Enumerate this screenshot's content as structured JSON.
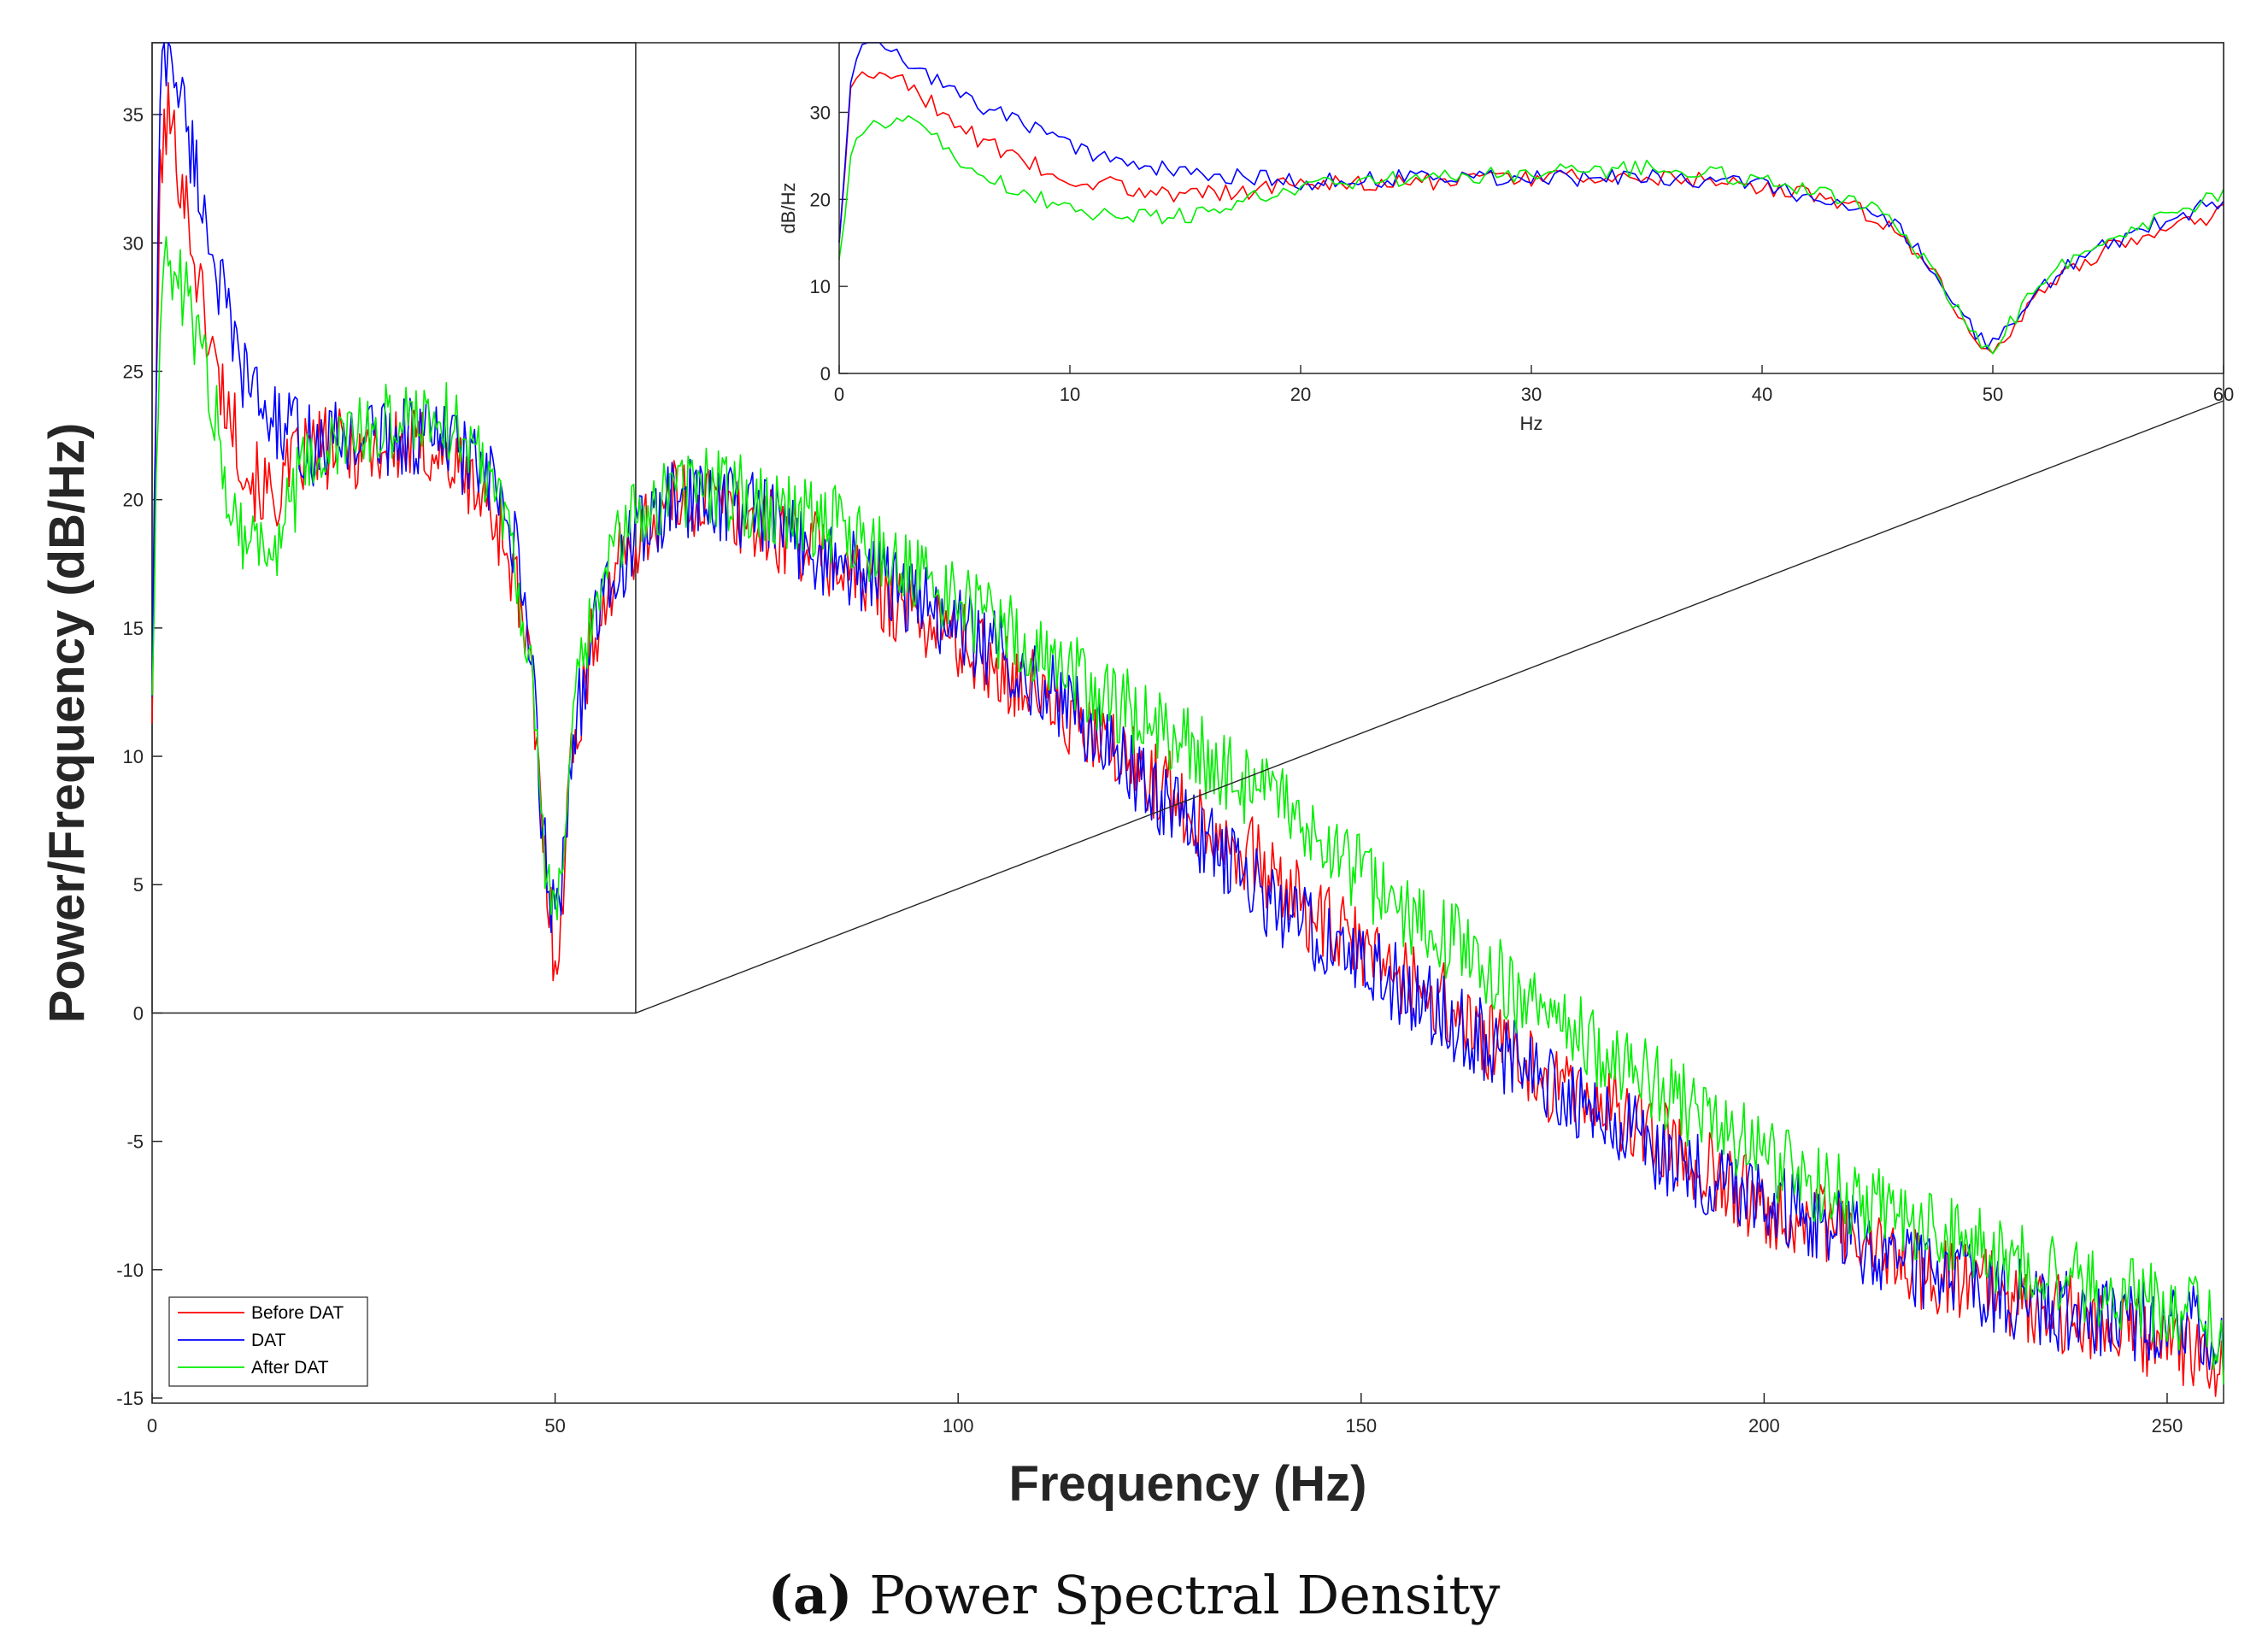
{
  "figure": {
    "caption_tag": "(a)",
    "caption_text": "Power Spectral Density"
  },
  "chart_data": [
    {
      "id": "main",
      "type": "line",
      "title": "",
      "xlabel": "Frequency (Hz)",
      "ylabel": "Power/Frequency (dB/Hz)",
      "xlim": [
        0,
        257
      ],
      "ylim": [
        -15.2,
        37.8
      ],
      "xticks": [
        0,
        50,
        100,
        150,
        200,
        250
      ],
      "yticks": [
        -15,
        -10,
        -5,
        0,
        5,
        10,
        15,
        20,
        25,
        30,
        35
      ],
      "grid": false,
      "legend_position": "bottom-left",
      "zoom_box": {
        "x": [
          0,
          60
        ],
        "y": [
          0,
          37.8
        ]
      },
      "series": [
        {
          "name": "Before DAT",
          "color": "#ff0000",
          "x": [
            0,
            1,
            2,
            4,
            6,
            8,
            10,
            12,
            15,
            18,
            20,
            25,
            30,
            35,
            40,
            43,
            45,
            47,
            48,
            49,
            50,
            51,
            52,
            55,
            58,
            60,
            65,
            70,
            75,
            80,
            85,
            90,
            95,
            100,
            105,
            110,
            115,
            120,
            125,
            130,
            135,
            140,
            145,
            150,
            155,
            160,
            165,
            170,
            175,
            180,
            185,
            190,
            195,
            200,
            205,
            210,
            215,
            220,
            225,
            230,
            235,
            240,
            245,
            250,
            255,
            257
          ],
          "y": [
            12,
            33,
            35,
            32,
            28,
            25,
            23,
            21,
            20,
            21.5,
            22,
            22,
            22,
            22,
            20.5,
            19,
            17,
            13,
            9,
            5,
            2,
            5,
            10,
            15,
            17.5,
            18.5,
            20,
            20,
            19,
            18.5,
            17.5,
            16.5,
            15.5,
            14.5,
            13.5,
            12.5,
            11,
            10,
            9,
            7.5,
            6.5,
            5,
            3.5,
            2.5,
            1.5,
            0.5,
            -1,
            -2,
            -3,
            -3.5,
            -4.5,
            -5.5,
            -6.5,
            -7.5,
            -8,
            -8.5,
            -9.5,
            -10,
            -10.5,
            -11,
            -11.5,
            -12,
            -12.5,
            -12.8,
            -13.2,
            -14
          ]
        },
        {
          "name": "DAT",
          "color": "#0000ff",
          "x": [
            0,
            1,
            2,
            4,
            6,
            8,
            10,
            12,
            15,
            18,
            20,
            25,
            30,
            35,
            40,
            43,
            45,
            47,
            48,
            49,
            50,
            51,
            52,
            55,
            58,
            60,
            65,
            70,
            75,
            80,
            85,
            90,
            95,
            100,
            105,
            110,
            115,
            120,
            125,
            130,
            135,
            140,
            145,
            150,
            155,
            160,
            165,
            170,
            175,
            180,
            185,
            190,
            195,
            200,
            205,
            210,
            215,
            220,
            225,
            230,
            235,
            240,
            245,
            250,
            255,
            257
          ],
          "y": [
            13,
            36,
            38,
            35,
            32,
            29,
            26,
            24.5,
            23,
            22.5,
            22,
            22.5,
            22.5,
            22.5,
            21.5,
            20,
            18,
            14,
            9.5,
            5,
            3.5,
            6,
            10.5,
            15,
            17.5,
            18.5,
            20,
            20,
            19.5,
            18.5,
            17.5,
            17,
            16,
            15,
            14,
            13,
            11.5,
            10,
            8.5,
            7,
            5.5,
            4,
            3,
            2,
            1,
            0,
            -1,
            -2,
            -3,
            -4,
            -5,
            -6,
            -6.5,
            -7,
            -8,
            -8.5,
            -9.5,
            -10,
            -10.5,
            -11,
            -11.5,
            -11.8,
            -12,
            -12,
            -12.2,
            -13
          ]
        },
        {
          "name": "After DAT",
          "color": "#00ee00",
          "x": [
            0,
            1,
            2,
            4,
            6,
            8,
            10,
            12,
            15,
            18,
            20,
            25,
            30,
            35,
            40,
            43,
            45,
            47,
            48,
            49,
            50,
            51,
            52,
            55,
            58,
            60,
            65,
            70,
            75,
            80,
            85,
            90,
            95,
            100,
            105,
            110,
            115,
            120,
            125,
            130,
            135,
            140,
            145,
            150,
            155,
            160,
            165,
            170,
            175,
            180,
            185,
            190,
            195,
            200,
            205,
            210,
            215,
            220,
            225,
            230,
            235,
            240,
            245,
            250,
            255,
            257
          ],
          "y": [
            13,
            28,
            29,
            28,
            26,
            23,
            19.5,
            18.5,
            18,
            20.5,
            21.5,
            22.5,
            23,
            23.5,
            22,
            20.5,
            18,
            13,
            9,
            5,
            3.5,
            6,
            11,
            16,
            18.5,
            19.5,
            20.5,
            20.5,
            20,
            19.5,
            19,
            18,
            17,
            16,
            15,
            14,
            13,
            12,
            11,
            10,
            9,
            8,
            6.5,
            5.5,
            4,
            3,
            2,
            0.5,
            -0.5,
            -1.5,
            -2.5,
            -3.5,
            -4.5,
            -5.5,
            -6.5,
            -7,
            -7.5,
            -8.5,
            -9,
            -9.5,
            -10,
            -10.5,
            -11,
            -11.5,
            -12,
            -13
          ]
        }
      ]
    },
    {
      "id": "inset",
      "type": "line",
      "title": "",
      "xlabel": "Hz",
      "ylabel": "dB/Hz",
      "xlim": [
        0,
        60
      ],
      "ylim": [
        0,
        38
      ],
      "xticks": [
        0,
        10,
        20,
        30,
        40,
        50,
        60
      ],
      "yticks": [
        0,
        10,
        20,
        30
      ],
      "grid": false,
      "series": [
        {
          "name": "Before DAT",
          "color": "#ff0000",
          "x": [
            0,
            0.5,
            1,
            2,
            3,
            4,
            5,
            6,
            8,
            10,
            12,
            15,
            18,
            20,
            25,
            30,
            35,
            38,
            40,
            42,
            44,
            45,
            46,
            47,
            48,
            49,
            49.5,
            50,
            51,
            52,
            53,
            54,
            55,
            56,
            58,
            60
          ],
          "y": [
            15,
            32,
            34.5,
            35,
            33,
            31,
            29,
            27,
            24.5,
            22.5,
            21.5,
            20.5,
            21,
            22,
            22,
            22.5,
            22.5,
            22,
            21.5,
            20.5,
            19,
            18,
            16,
            13,
            9,
            5,
            3,
            2.5,
            5.5,
            9,
            11.5,
            13,
            14.5,
            15.5,
            17,
            18.5
          ]
        },
        {
          "name": "DAT",
          "color": "#0000ff",
          "x": [
            0,
            0.5,
            1,
            2,
            3,
            4,
            5,
            6,
            8,
            10,
            12,
            15,
            18,
            20,
            25,
            30,
            35,
            38,
            40,
            42,
            44,
            45,
            46,
            47,
            48,
            49,
            49.5,
            50,
            51,
            52,
            53,
            54,
            55,
            56,
            58,
            60
          ],
          "y": [
            15,
            34,
            37,
            38,
            36,
            34,
            32.5,
            31,
            28.5,
            26,
            24.5,
            23,
            22.5,
            22,
            22.5,
            22.5,
            22.5,
            22,
            21.5,
            20.5,
            19,
            18,
            16.5,
            13.5,
            9.5,
            5.5,
            4,
            3.5,
            6,
            9.5,
            12,
            13.5,
            15,
            16,
            18,
            20
          ]
        },
        {
          "name": "After DAT",
          "color": "#00ee00",
          "x": [
            0,
            0.5,
            1,
            2,
            3,
            4,
            5,
            6,
            8,
            10,
            12,
            15,
            18,
            20,
            25,
            30,
            35,
            38,
            40,
            42,
            44,
            45,
            46,
            47,
            48,
            49,
            49.5,
            50,
            51,
            52,
            53,
            54,
            55,
            56,
            58,
            60
          ],
          "y": [
            13,
            25,
            28,
            29,
            29,
            28,
            25,
            23,
            21,
            19,
            18,
            18,
            20.5,
            21.5,
            22.5,
            23,
            23.5,
            23,
            22,
            21,
            19.5,
            18.5,
            16.5,
            13,
            9,
            5,
            3.5,
            3,
            6.5,
            10,
            12.5,
            14.5,
            15.5,
            16.5,
            19,
            20.5
          ]
        }
      ]
    }
  ]
}
